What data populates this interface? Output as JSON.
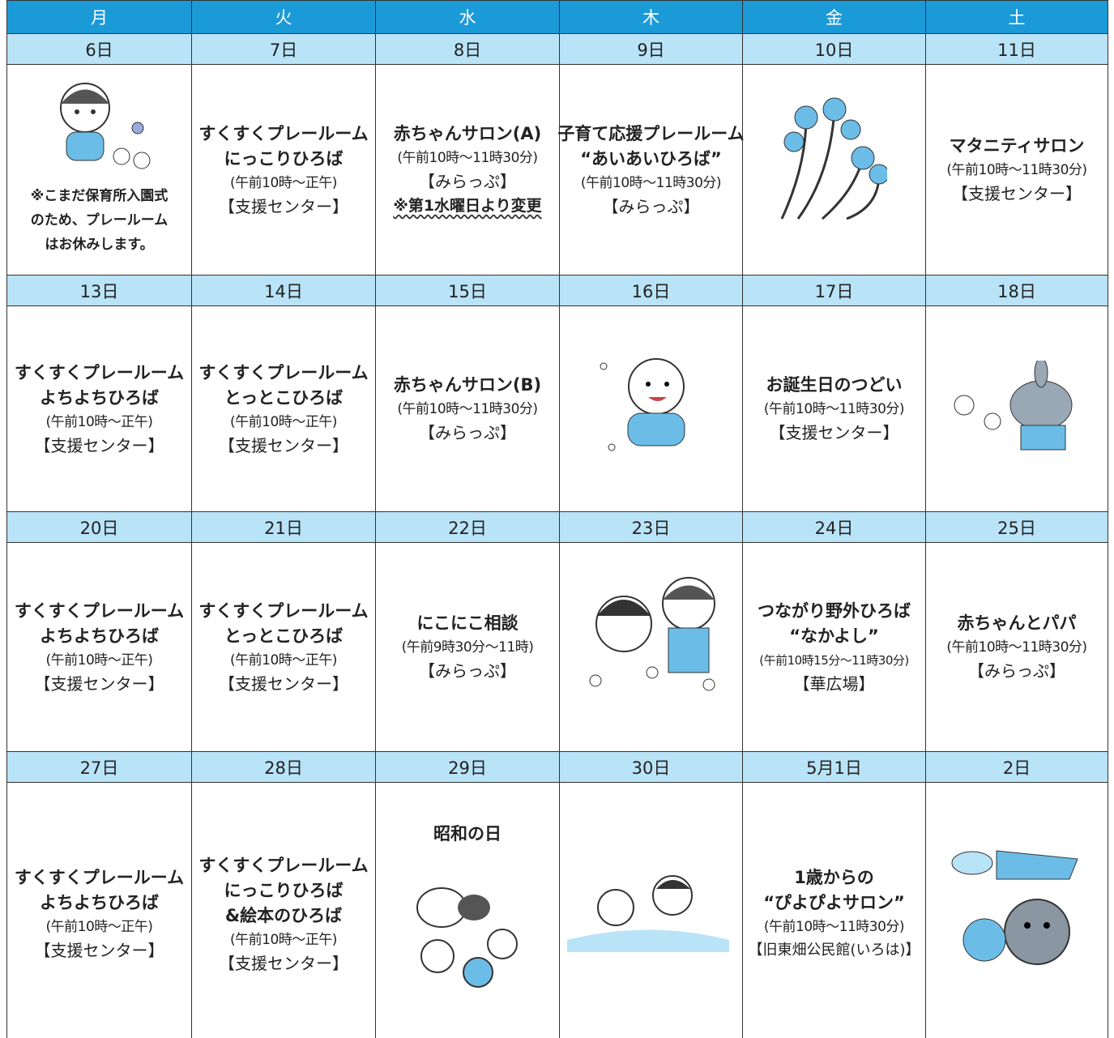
{
  "header": {
    "days": [
      "月",
      "火",
      "水",
      "木",
      "金",
      "土"
    ]
  },
  "weeks": [
    {
      "dates": [
        "6日",
        "7日",
        "8日",
        "9日",
        "10日",
        "11日"
      ],
      "cells": [
        {
          "note": [
            "※こまだ保育所入園式",
            "のため、プレールーム",
            "はお休みします。"
          ]
        },
        {
          "title": [
            "すくすくプレールーム",
            "にっこりひろば"
          ],
          "time": "(午前10時～正午)",
          "place": "【支援センター】"
        },
        {
          "title": [
            "赤ちゃんサロン(A)"
          ],
          "time": "(午前10時～11時30分)",
          "place": "【みらっぷ】",
          "change": "※第1水曜日より変更"
        },
        {
          "title": [
            "子育て応援プレールーム",
            "“あいあいひろば”"
          ],
          "time": "(午前10時～11時30分)",
          "place": "【みらっぷ】"
        },
        {},
        {
          "title": [
            "マタニティサロン"
          ],
          "time": "(午前10時～11時30分)",
          "place": "【支援センター】"
        }
      ]
    },
    {
      "dates": [
        "13日",
        "14日",
        "15日",
        "16日",
        "17日",
        "18日"
      ],
      "cells": [
        {
          "title": [
            "すくすくプレールーム",
            "よちよちひろば"
          ],
          "time": "(午前10時～正午)",
          "place": "【支援センター】"
        },
        {
          "title": [
            "すくすくプレールーム",
            "とっとこひろば"
          ],
          "time": "(午前10時～正午)",
          "place": "【支援センター】"
        },
        {
          "title": [
            "赤ちゃんサロン(B)"
          ],
          "time": "(午前10時～11時30分)",
          "place": "【みらっぷ】"
        },
        {},
        {
          "title": [
            "お誕生日のつどい"
          ],
          "time": "(午前10時～11時30分)",
          "place": "【支援センター】"
        },
        {}
      ]
    },
    {
      "dates": [
        "20日",
        "21日",
        "22日",
        "23日",
        "24日",
        "25日"
      ],
      "cells": [
        {
          "title": [
            "すくすくプレールーム",
            "よちよちひろば"
          ],
          "time": "(午前10時～正午)",
          "place": "【支援センター】"
        },
        {
          "title": [
            "すくすくプレールーム",
            "とっとこひろば"
          ],
          "time": "(午前10時～正午)",
          "place": "【支援センター】"
        },
        {
          "title": [
            "にこにこ相談"
          ],
          "time": "(午前9時30分～11時)",
          "place": "【みらっぷ】"
        },
        {},
        {
          "title": [
            "つながり野外ひろば",
            "“なかよし”"
          ],
          "time": "(午前10時15分～11時30分)",
          "place": "【華広場】"
        },
        {
          "title": [
            "赤ちゃんとパパ"
          ],
          "time": "(午前10時～11時30分)",
          "place": "【みらっぷ】"
        }
      ]
    },
    {
      "dates": [
        "27日",
        "28日",
        "29日",
        "30日",
        "5月1日",
        "2日"
      ],
      "cells": [
        {
          "title": [
            "すくすくプレールーム",
            "よちよちひろば"
          ],
          "time": "(午前10時～正午)",
          "place": "【支援センター】"
        },
        {
          "title": [
            "すくすくプレールーム",
            "にっこりひろば",
            "&絵本のひろば"
          ],
          "time": "(午前10時～正午)",
          "place": "【支援センター】"
        },
        {
          "title": [
            "昭和の日"
          ]
        },
        {},
        {
          "title": [
            "1歳からの",
            "“ぴよぴよサロン”"
          ],
          "time": "(午前10時～11時30分)",
          "place": "【旧東畑公民館(いろは)】"
        },
        {}
      ]
    }
  ]
}
